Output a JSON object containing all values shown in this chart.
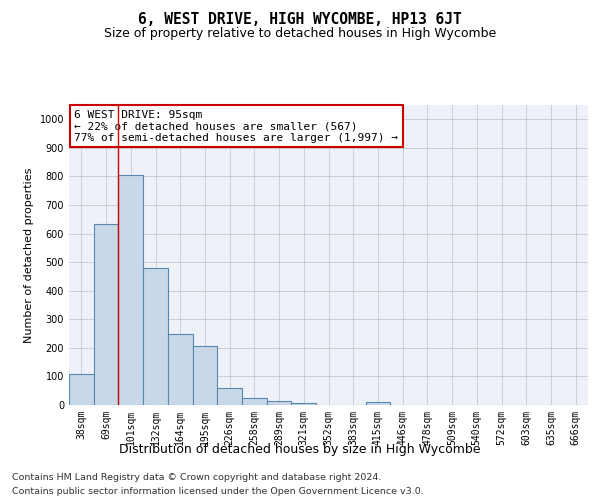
{
  "title": "6, WEST DRIVE, HIGH WYCOMBE, HP13 6JT",
  "subtitle": "Size of property relative to detached houses in High Wycombe",
  "xlabel": "Distribution of detached houses by size in High Wycombe",
  "ylabel": "Number of detached properties",
  "footer_line1": "Contains HM Land Registry data © Crown copyright and database right 2024.",
  "footer_line2": "Contains public sector information licensed under the Open Government Licence v3.0.",
  "categories": [
    "38sqm",
    "69sqm",
    "101sqm",
    "132sqm",
    "164sqm",
    "195sqm",
    "226sqm",
    "258sqm",
    "289sqm",
    "321sqm",
    "352sqm",
    "383sqm",
    "415sqm",
    "446sqm",
    "478sqm",
    "509sqm",
    "540sqm",
    "572sqm",
    "603sqm",
    "635sqm",
    "666sqm"
  ],
  "values": [
    110,
    635,
    805,
    480,
    250,
    205,
    60,
    25,
    15,
    8,
    0,
    0,
    10,
    0,
    0,
    0,
    0,
    0,
    0,
    0,
    0
  ],
  "bar_color": "#c8d8e8",
  "bar_edge_color": "#5588aa",
  "bar_edge_width": 0.8,
  "property_line_x": 1.5,
  "annotation_text": "6 WEST DRIVE: 95sqm\n← 22% of detached houses are smaller (567)\n77% of semi-detached houses are larger (1,997) →",
  "annotation_box_color": "#ffffff",
  "annotation_box_edge_color": "#cc0000",
  "property_line_color": "#cc0000",
  "ylim": [
    0,
    1050
  ],
  "yticks": [
    0,
    100,
    200,
    300,
    400,
    500,
    600,
    700,
    800,
    900,
    1000
  ],
  "grid_color": "#c8c8d0",
  "bg_color": "#eef2f8",
  "title_fontsize": 10.5,
  "subtitle_fontsize": 9,
  "xlabel_fontsize": 9,
  "ylabel_fontsize": 8,
  "tick_fontsize": 7,
  "annotation_fontsize": 8,
  "footer_fontsize": 6.8
}
